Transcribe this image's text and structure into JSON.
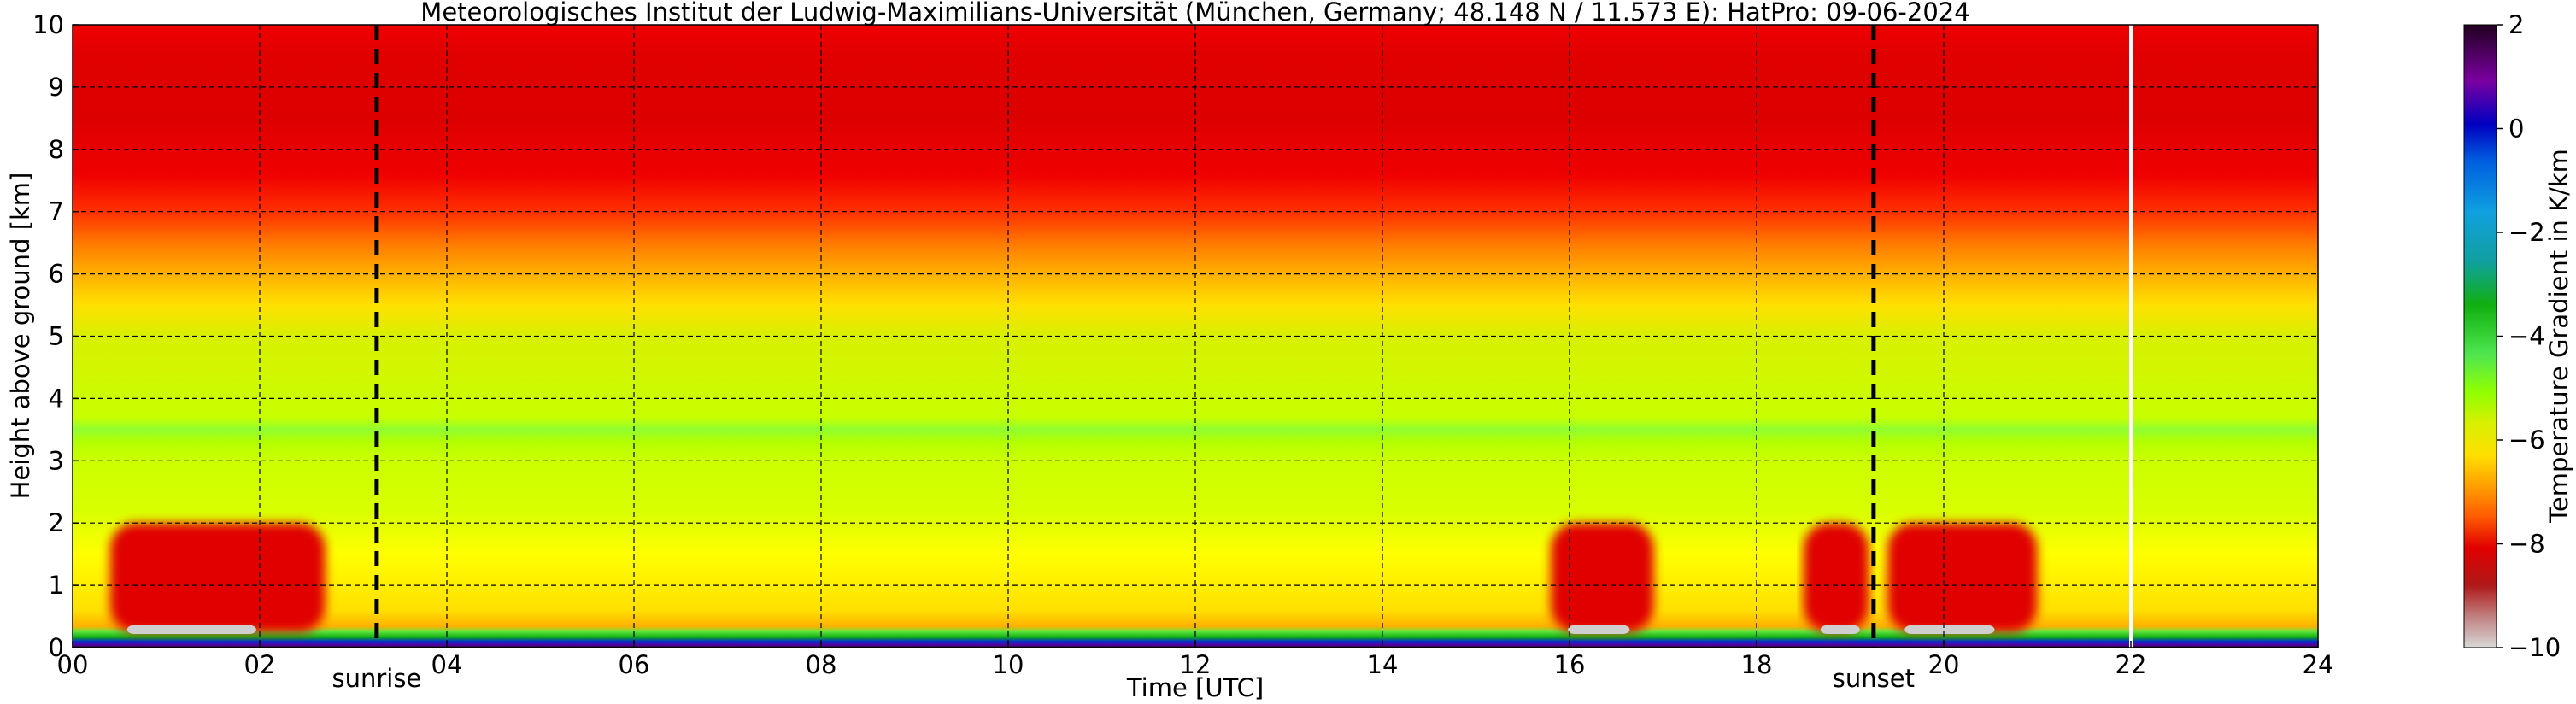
{
  "chart_data": {
    "type": "heatmap",
    "title": "Meteorologisches Institut der Ludwig-Maximilians-Universität (München, Germany; 48.148 N / 11.573 E):    HatPro: 09-06-2024",
    "xlabel": "Time [UTC]",
    "ylabel": "Height above ground [km]",
    "xlim": [
      0,
      24
    ],
    "ylim": [
      0,
      10
    ],
    "x_ticks": [
      0,
      2,
      4,
      6,
      8,
      10,
      12,
      14,
      16,
      18,
      20,
      22,
      24
    ],
    "x_tick_labels": [
      "00",
      "02",
      "04",
      "06",
      "08",
      "10",
      "12",
      "14",
      "16",
      "18",
      "20",
      "22",
      "24"
    ],
    "y_ticks": [
      0,
      1,
      2,
      3,
      4,
      5,
      6,
      7,
      8,
      9,
      10
    ],
    "y_tick_labels": [
      "0",
      "1",
      "2",
      "3",
      "4",
      "5",
      "6",
      "7",
      "8",
      "9",
      "10"
    ],
    "grid": true,
    "colorbar": {
      "label": "Temperature Gradient in K/km",
      "range": [
        -10,
        2
      ],
      "ticks": [
        2,
        0,
        -2,
        -4,
        -6,
        -8,
        -10
      ],
      "tick_labels": [
        "2",
        "0",
        "−2",
        "−4",
        "−6",
        "−8",
        "−10"
      ],
      "colors": [
        "#c8c8c8",
        "#b01818",
        "#e00000",
        "#ff5a00",
        "#ffa000",
        "#ffe000",
        "#b4ff00",
        "#50e650",
        "#10b010",
        "#10a0a0",
        "#10a0e0",
        "#0060e0",
        "#0000c0",
        "#7a00a0",
        "#200020"
      ]
    },
    "markers": [
      {
        "label": "sunrise",
        "x": 3.25
      },
      {
        "label": "sunset",
        "x": 19.25
      }
    ],
    "data_gaps_x": [
      22.0
    ],
    "layers": [
      {
        "name": "surface layer 0–0.3 km",
        "typical_gradient": 1.0
      },
      {
        "name": "boundary layer 0.3–3 km",
        "typical_gradient": -7.0
      },
      {
        "name": "layer 3–6 km",
        "typical_gradient": -6.0
      },
      {
        "name": "upper troposphere 6–10 km",
        "typical_gradient": -8.5
      }
    ],
    "features": [
      {
        "name": "nocturnal low-level red blob",
        "x_start": 0.4,
        "x_end": 2.7,
        "y_top": 2.0,
        "gradient": -8.8
      },
      {
        "name": "afternoon red blob",
        "x_start": 15.8,
        "x_end": 16.9,
        "y_top": 2.0,
        "gradient": -8.8
      },
      {
        "name": "evening red blob",
        "x_start": 18.5,
        "x_end": 19.2,
        "y_top": 2.0,
        "gradient": -8.8
      },
      {
        "name": "evening red blob",
        "x_start": 19.4,
        "x_end": 21.0,
        "y_top": 2.0,
        "gradient": -8.8
      }
    ]
  }
}
